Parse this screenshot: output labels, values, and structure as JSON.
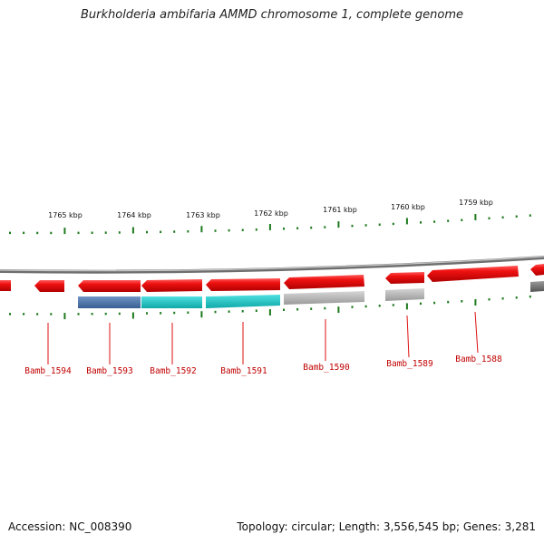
{
  "title": "Burkholderia ambifaria AMMD chromosome 1, complete genome",
  "scale_labels": [
    "1765 kbp",
    "1764 kbp",
    "1763 kbp",
    "1762 kbp",
    "1761 kbp",
    "1760 kbp",
    "1759 kbp"
  ],
  "genes": [
    "Bamb_1594",
    "Bamb_1593",
    "Bamb_1592",
    "Bamb_1591",
    "Bamb_1590",
    "Bamb_1589",
    "Bamb_1588"
  ],
  "footer": {
    "accession": "Accession: NC_008390",
    "summary": "Topology: circular; Length: 3,556,545 bp; Genes: 3,281"
  },
  "colors": {
    "cds": "#ee1111",
    "tick": "#1e7a1e",
    "backbone": "#888888",
    "label": "#c00000",
    "teal": "#1cc6c6",
    "steel_blue": "#4a72a8",
    "grey": "#b8b8b8"
  }
}
